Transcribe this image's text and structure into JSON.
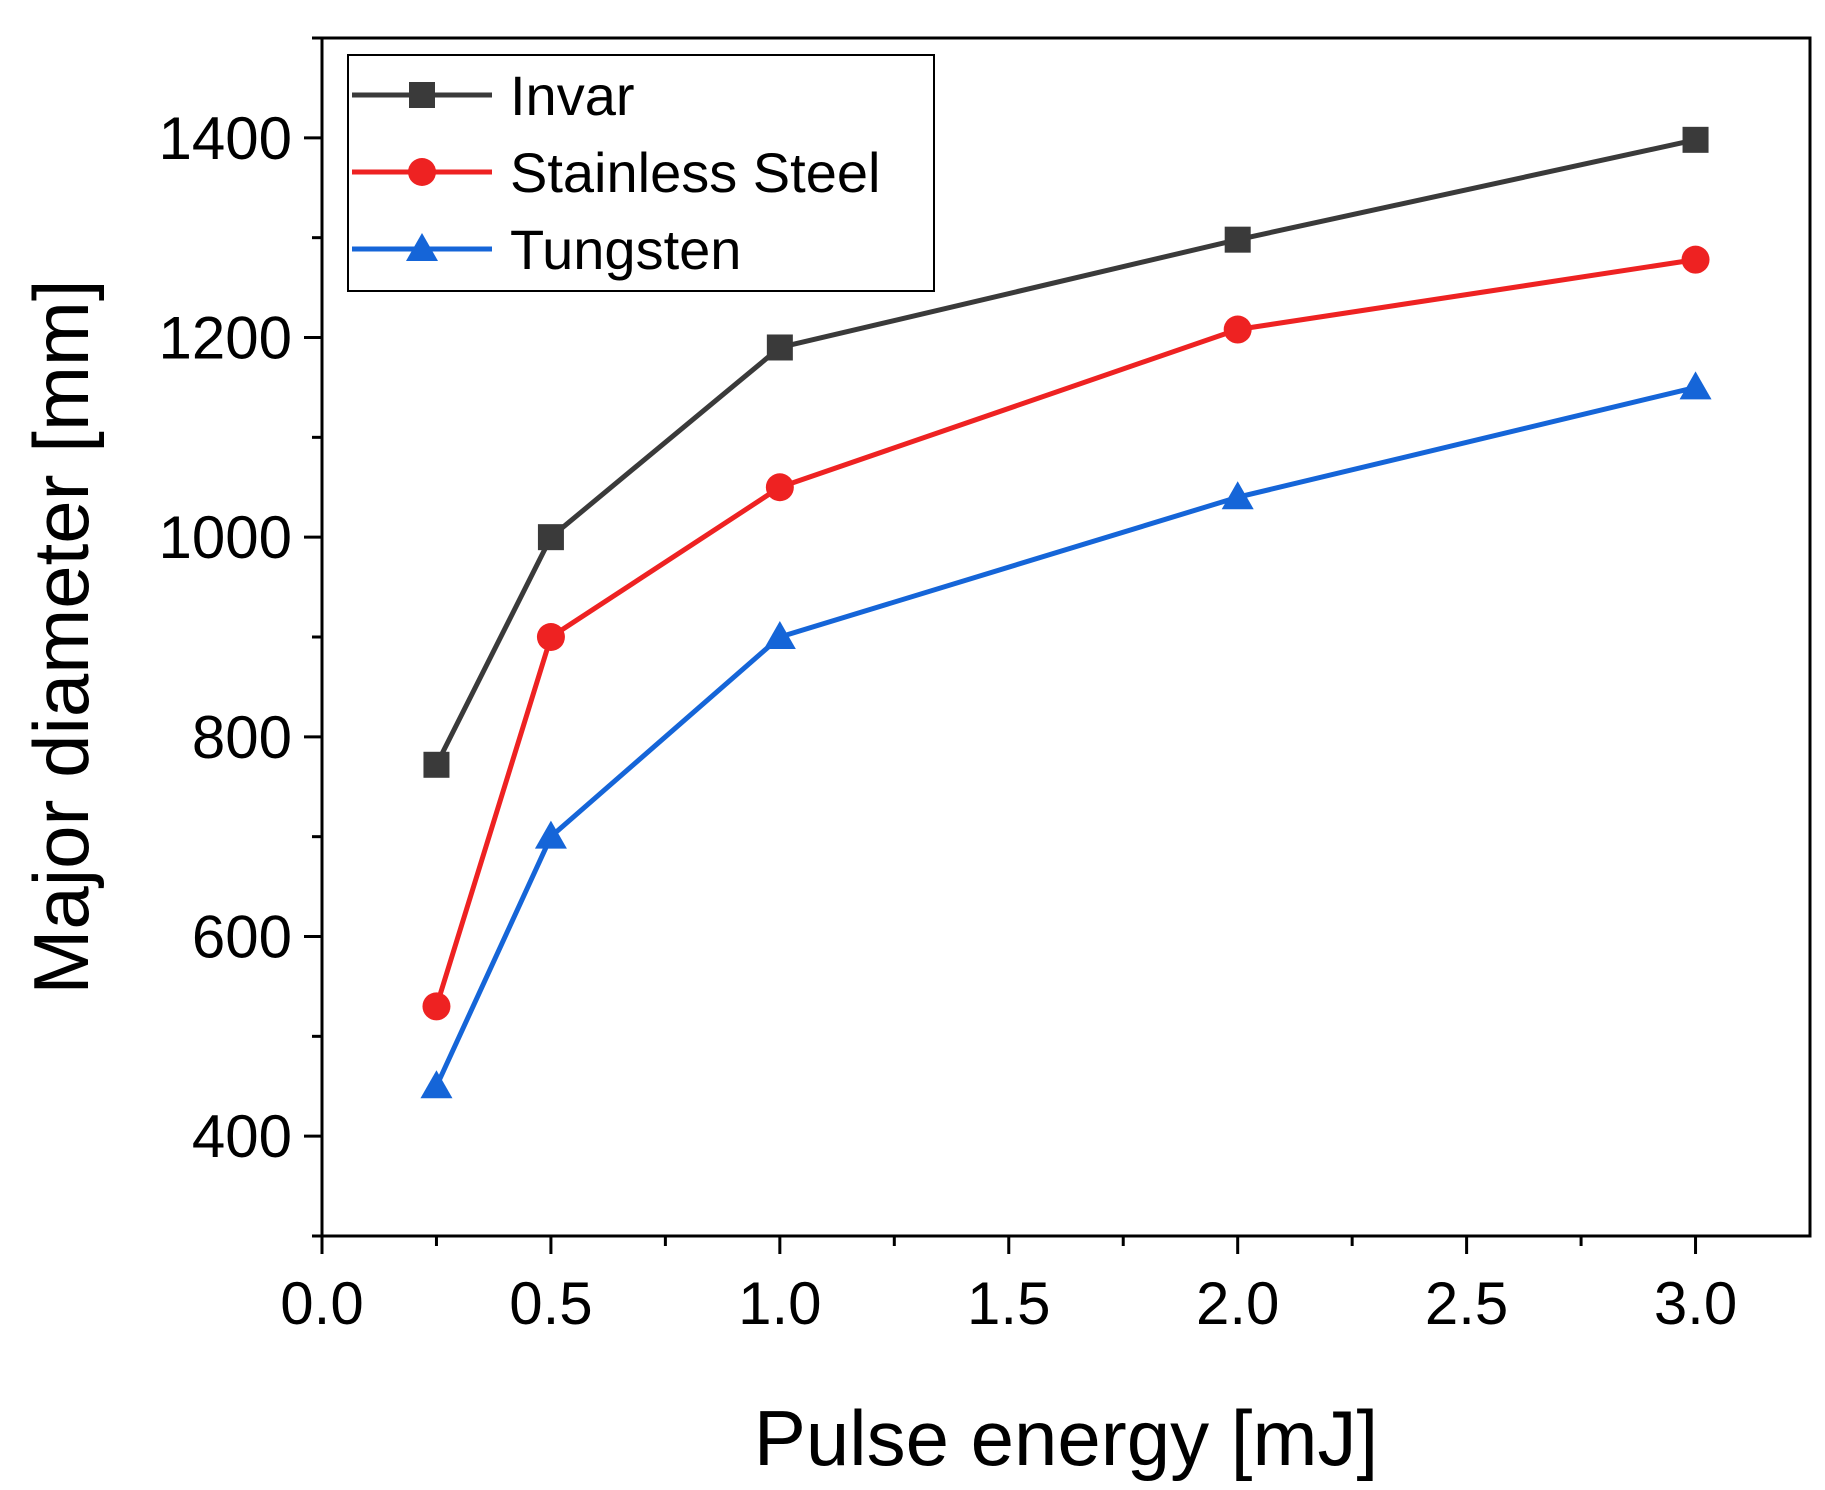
{
  "chart_data": {
    "type": "line",
    "title": "",
    "xlabel": "Pulse energy [mJ]",
    "ylabel": "Major diameter [mm]",
    "xlim": [
      0.0,
      3.25
    ],
    "ylim": [
      300,
      1500
    ],
    "x_major_ticks": [
      0.0,
      0.5,
      1.0,
      1.5,
      2.0,
      2.5,
      3.0
    ],
    "x_tick_labels": [
      "0.0",
      "0.5",
      "1.0",
      "1.5",
      "2.0",
      "2.5",
      "3.0"
    ],
    "x_minor_ticks": [
      0.25,
      0.75,
      1.25,
      1.75,
      2.25,
      2.75
    ],
    "y_major_ticks": [
      400,
      600,
      800,
      1000,
      1200,
      1400
    ],
    "y_tick_labels": [
      "400",
      "600",
      "800",
      "1000",
      "1200",
      "1400"
    ],
    "y_minor_ticks": [
      300,
      500,
      700,
      900,
      1100,
      1300,
      1500
    ],
    "grid": false,
    "legend_position": "top-left",
    "x": [
      0.25,
      0.5,
      1.0,
      2.0,
      3.0
    ],
    "series": [
      {
        "name": "Invar",
        "color": "#3a3a3a",
        "marker": "square",
        "values": [
          772,
          1000,
          1190,
          1298,
          1398
        ]
      },
      {
        "name": "Stainless Steel",
        "color": "#ee2222",
        "marker": "circle",
        "values": [
          530,
          900,
          1050,
          1208,
          1278
        ]
      },
      {
        "name": "Tungsten",
        "color": "#1565d8",
        "marker": "triangle",
        "values": [
          450,
          700,
          900,
          1040,
          1150
        ]
      }
    ]
  }
}
